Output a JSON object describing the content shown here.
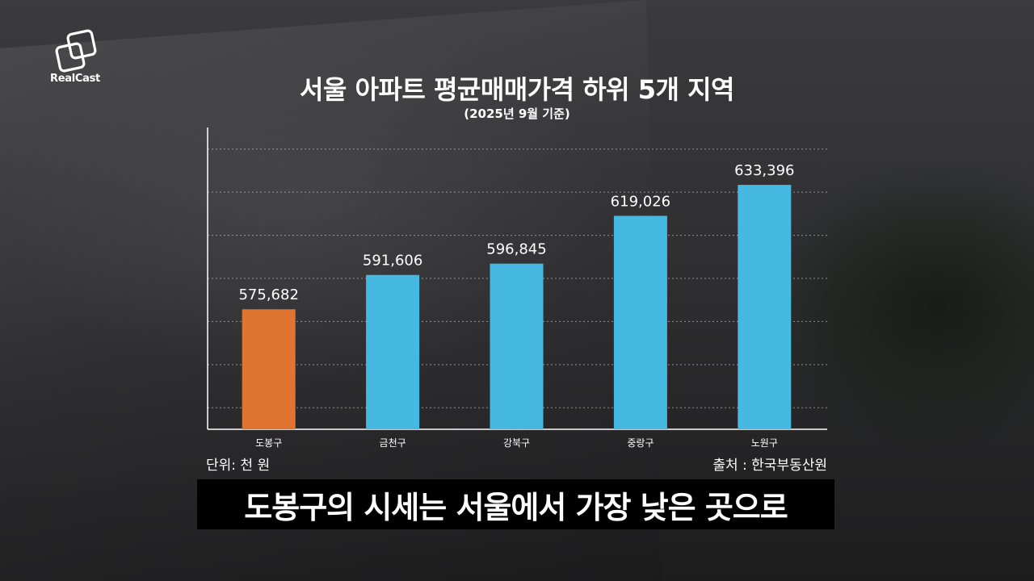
{
  "brand": {
    "name": "RealCast",
    "logo_icon": "overlapping-squares-logo"
  },
  "caption": "도봉구의 시세는 서울에서 가장 낮은 곳으로",
  "chart_data": {
    "type": "bar",
    "title": "서울 아파트 평균매매가격 하위 5개 지역",
    "subtitle": "(2025년 9월 기준)",
    "categories": [
      "도봉구",
      "금천구",
      "강북구",
      "중랑구",
      "노원구"
    ],
    "values": [
      575682,
      591606,
      596845,
      619026,
      633396
    ],
    "value_labels": [
      "575,682",
      "591,606",
      "596,845",
      "619,026",
      "633,396"
    ],
    "colors": [
      "#e07532",
      "#45b9e2",
      "#45b9e2",
      "#45b9e2",
      "#45b9e2"
    ],
    "ylim": [
      520000,
      660000
    ],
    "gridlines": [
      530000,
      550000,
      570000,
      590000,
      610000,
      630000,
      650000
    ],
    "grid": true,
    "unit_note": "단위: 천 원",
    "source_note": "출처 : 한국부동산원"
  }
}
